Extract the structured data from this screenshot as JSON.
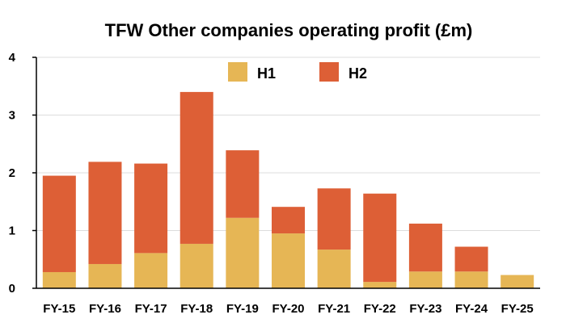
{
  "chart_data": {
    "type": "bar",
    "stacked": true,
    "title": "TFW Other companies operating profit (£m)",
    "xlabel": "",
    "ylabel": "",
    "categories": [
      "FY-15",
      "FY-16",
      "FY-17",
      "FY-18",
      "FY-19",
      "FY-20",
      "FY-21",
      "FY-22",
      "FY-23",
      "FY-24",
      "FY-25"
    ],
    "series": [
      {
        "name": "H1",
        "color": "#E6B655",
        "values": [
          0.28,
          0.42,
          0.61,
          0.77,
          1.22,
          0.95,
          0.67,
          0.11,
          0.29,
          0.29,
          0.23
        ]
      },
      {
        "name": "H2",
        "color": "#DD5F36",
        "values": [
          1.67,
          1.77,
          1.55,
          2.63,
          1.17,
          0.46,
          1.06,
          1.53,
          0.83,
          0.43,
          0
        ]
      }
    ],
    "ylim": [
      0,
      4
    ],
    "yticks": [
      0,
      1,
      2,
      3,
      4
    ],
    "grid": true,
    "legend_position": "top-center"
  }
}
